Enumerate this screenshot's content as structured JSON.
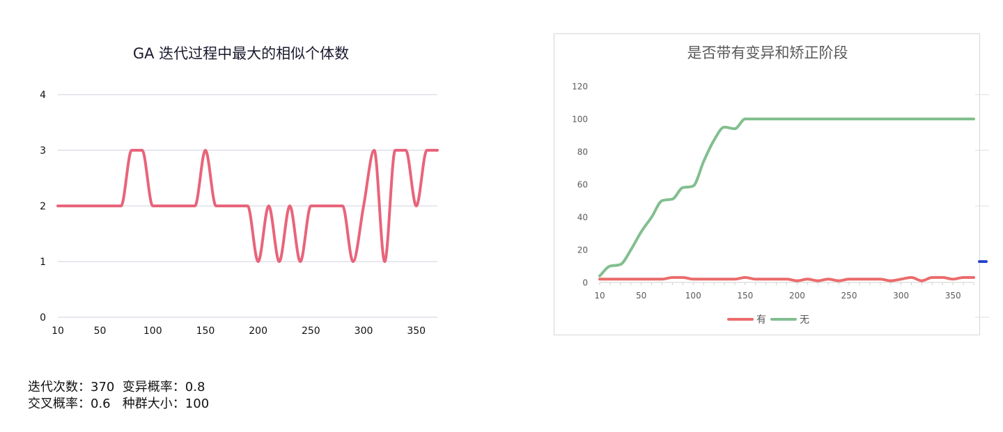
{
  "chart_data": [
    {
      "type": "line",
      "title": "GA 迭代过程中最大的相似个体数",
      "xlabel": "",
      "ylabel": "",
      "ylim": [
        0,
        4
      ],
      "yticks": [
        0,
        1,
        2,
        3,
        4
      ],
      "xlim": [
        10,
        370
      ],
      "xticks": [
        10,
        50,
        100,
        150,
        200,
        250,
        300,
        350
      ],
      "grid": true,
      "series": [
        {
          "color": "#e8647a",
          "x": [
            10,
            20,
            30,
            40,
            50,
            60,
            70,
            80,
            90,
            100,
            110,
            120,
            130,
            140,
            150,
            160,
            170,
            180,
            190,
            200,
            210,
            220,
            230,
            240,
            250,
            260,
            270,
            280,
            290,
            300,
            310,
            320,
            330,
            340,
            350,
            360,
            370
          ],
          "values": [
            2,
            2,
            2,
            2,
            2,
            2,
            2,
            3,
            3,
            2,
            2,
            2,
            2,
            2,
            3,
            2,
            2,
            2,
            2,
            1,
            2,
            1,
            2,
            1,
            2,
            2,
            2,
            2,
            1,
            2,
            3,
            1,
            3,
            3,
            2,
            3,
            3
          ]
        }
      ]
    },
    {
      "type": "line",
      "title": "是否带有变异和矫正阶段",
      "xlabel": "",
      "ylabel": "",
      "ylim": [
        0,
        120
      ],
      "yticks": [
        0,
        20,
        40,
        60,
        80,
        100,
        120
      ],
      "xlim": [
        10,
        370
      ],
      "xticks": [
        10,
        50,
        100,
        150,
        200,
        250,
        300,
        350
      ],
      "legend": "bottom",
      "series": [
        {
          "name": "有",
          "color": "#ec6b6b",
          "x": [
            10,
            20,
            30,
            40,
            50,
            60,
            70,
            80,
            90,
            100,
            110,
            120,
            130,
            140,
            150,
            160,
            170,
            180,
            190,
            200,
            210,
            220,
            230,
            240,
            250,
            260,
            270,
            280,
            290,
            300,
            310,
            320,
            330,
            340,
            350,
            360,
            370
          ],
          "values": [
            2,
            2,
            2,
            2,
            2,
            2,
            2,
            3,
            3,
            2,
            2,
            2,
            2,
            2,
            3,
            2,
            2,
            2,
            2,
            1,
            2,
            1,
            2,
            1,
            2,
            2,
            2,
            2,
            1,
            2,
            3,
            1,
            3,
            3,
            2,
            3,
            3
          ]
        },
        {
          "name": "无",
          "color": "#82bf8f",
          "x": [
            10,
            20,
            30,
            40,
            50,
            60,
            70,
            80,
            90,
            100,
            110,
            120,
            130,
            140,
            150,
            160,
            170,
            180,
            190,
            200,
            210,
            220,
            230,
            240,
            250,
            260,
            270,
            280,
            290,
            300,
            310,
            320,
            330,
            340,
            350,
            360,
            370
          ],
          "values": [
            4,
            10,
            11,
            20,
            31,
            40,
            50,
            51,
            58,
            59,
            74,
            87,
            95,
            94,
            100,
            100,
            100,
            100,
            100,
            100,
            100,
            100,
            100,
            100,
            100,
            100,
            100,
            100,
            100,
            100,
            100,
            100,
            100,
            100,
            100,
            100,
            100
          ]
        }
      ]
    }
  ],
  "params": {
    "line1": "迭代次数：370  变异概率：0.8",
    "line2": "交叉概率：0.6   种群大小：100"
  }
}
